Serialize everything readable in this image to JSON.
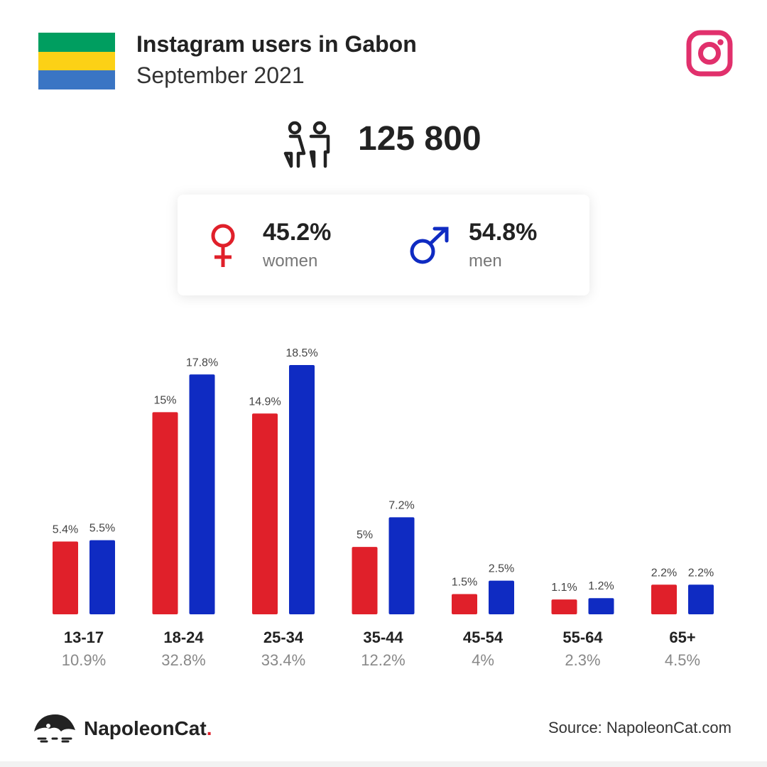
{
  "header": {
    "title": "Instagram users in Gabon",
    "subtitle": "September 2021"
  },
  "flag": {
    "colors": [
      "#009e60",
      "#fcd116",
      "#3a75c4"
    ]
  },
  "icons": {
    "flag": "gabon-flag-icon",
    "instagram": "instagram-icon",
    "people": "people-icon",
    "female": "female-icon",
    "male": "male-icon",
    "logo": "napoleoncat-logo-icon"
  },
  "total": {
    "value": "125 800"
  },
  "gender": {
    "women": {
      "pct": "45.2%",
      "label": "women",
      "color": "#e0202a"
    },
    "men": {
      "pct": "54.8%",
      "label": "men",
      "color": "#0f2bc2"
    }
  },
  "chart_data": {
    "type": "bar",
    "categories": [
      "13-17",
      "18-24",
      "25-34",
      "35-44",
      "45-54",
      "55-64",
      "65+"
    ],
    "totals": [
      "10.9%",
      "32.8%",
      "33.4%",
      "12.2%",
      "4%",
      "2.3%",
      "4.5%"
    ],
    "series": [
      {
        "key": "women",
        "color": "#e0202a",
        "values": [
          5.4,
          15,
          14.9,
          5,
          1.5,
          1.1,
          2.2
        ],
        "labels": [
          "5.4%",
          "15%",
          "14.9%",
          "5%",
          "1.5%",
          "1.1%",
          "2.2%"
        ]
      },
      {
        "key": "men",
        "color": "#0f2bc2",
        "values": [
          5.5,
          17.8,
          18.5,
          7.2,
          2.5,
          1.2,
          2.2
        ],
        "labels": [
          "5.5%",
          "17.8%",
          "18.5%",
          "7.2%",
          "2.5%",
          "1.2%",
          "2.2%"
        ]
      }
    ],
    "ylim": [
      0,
      18.5
    ],
    "grid": false,
    "legend": "none"
  },
  "footer": {
    "brand": "NapoleonCat",
    "brand_dot": ".",
    "source": "Source: NapoleonCat.com"
  }
}
